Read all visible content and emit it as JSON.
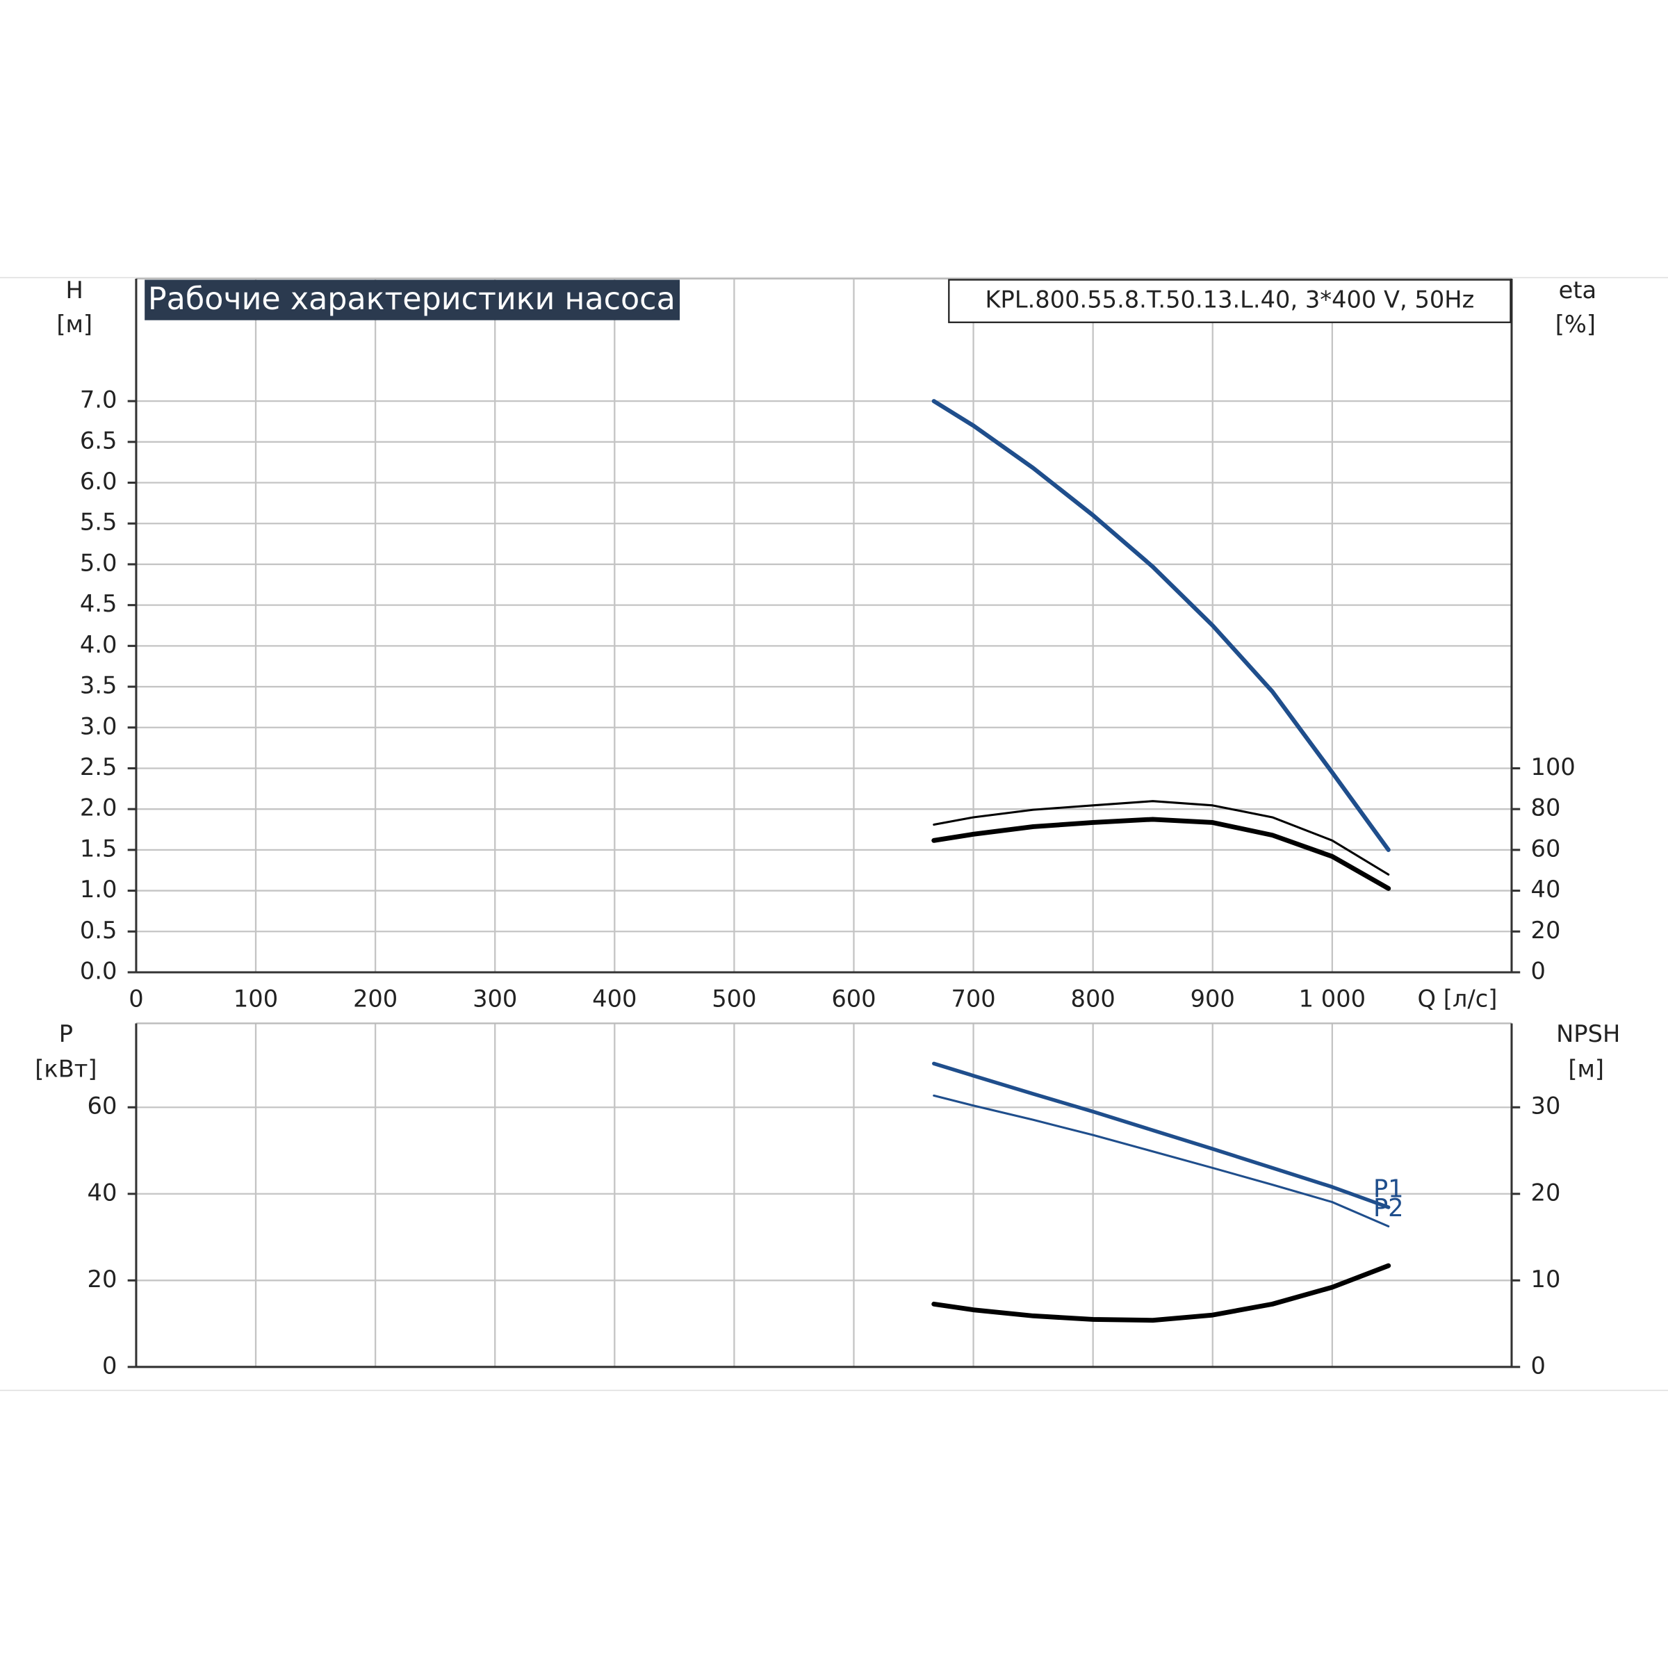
{
  "chart_data": [
    {
      "type": "line",
      "title": "Рабочие характеристики насоса",
      "subtitle": "KPL.800.55.8.T.50.13.L.40, 3*400 V, 50Hz",
      "ylabel": "H",
      "yunit": "[м]",
      "y2label": "eta",
      "y2unit": "[%]",
      "xlabel": "Q [л/с]",
      "xlim": [
        0,
        1150
      ],
      "xticks": [
        0,
        100,
        200,
        300,
        400,
        500,
        600,
        700,
        800,
        900,
        {
          "value": 1000,
          "label": "1 000"
        }
      ],
      "ylim": [
        0,
        8.5
      ],
      "yticks": [
        {
          "value": 0,
          "label": "0.0"
        },
        0.5,
        {
          "value": 1,
          "label": "1.0"
        },
        1.5,
        {
          "value": 2,
          "label": "2.0"
        },
        2.5,
        {
          "value": 3,
          "label": "3.0"
        },
        3.5,
        {
          "value": 4,
          "label": "4.0"
        },
        4.5,
        {
          "value": 5,
          "label": "5.0"
        },
        5.5,
        {
          "value": 6,
          "label": "6.0"
        },
        6.5,
        {
          "value": 7,
          "label": "7.0"
        }
      ],
      "y2lim": [
        0,
        340
      ],
      "y2ticks": [
        0,
        20,
        40,
        60,
        80,
        100
      ],
      "grid": true,
      "series": [
        {
          "color": "#1f4e8c",
          "linewidth": 4,
          "x": [
            667,
            700,
            750,
            800,
            850,
            900,
            950,
            1000,
            1047
          ],
          "values": [
            7.0,
            6.7,
            6.18,
            5.6,
            4.97,
            4.25,
            3.44,
            2.45,
            1.5
          ]
        },
        {
          "color": "#000000",
          "linewidth": 2,
          "axis": "y2",
          "x": [
            667,
            700,
            750,
            800,
            850,
            900,
            950,
            1000,
            1047
          ],
          "values": [
            72.4,
            76,
            79.7,
            81.8,
            83.9,
            81.8,
            76,
            64.6,
            47.9
          ]
        },
        {
          "color": "#000000",
          "linewidth": 4.5,
          "axis": "y2",
          "x": [
            667,
            700,
            750,
            800,
            850,
            900,
            950,
            1000,
            1047
          ],
          "values": [
            64.6,
            67.7,
            71.4,
            73.4,
            75,
            73.4,
            67.2,
            56.8,
            41.1
          ]
        }
      ]
    },
    {
      "type": "line",
      "ylabel": "P",
      "yunit": "[кВт]",
      "y2label": "NPSH",
      "y2unit": "[м]",
      "ylim": [
        0,
        79.4
      ],
      "yticks": [
        0,
        20,
        40,
        60
      ],
      "y2lim": [
        0,
        39.7
      ],
      "y2ticks": [
        0,
        10,
        20,
        30
      ],
      "grid": true,
      "series": [
        {
          "name": "P1",
          "color": "#1f4e8c",
          "linewidth": 3.5,
          "x": [
            667,
            700,
            750,
            800,
            850,
            900,
            950,
            1000,
            1047
          ],
          "values": [
            70.1,
            67.3,
            63.1,
            59,
            54.7,
            50.4,
            46.0,
            41.6,
            36.9
          ]
        },
        {
          "name": "P2",
          "color": "#1f4e8c",
          "linewidth": 2,
          "x": [
            667,
            700,
            750,
            800,
            850,
            900,
            950,
            1000,
            1047
          ],
          "values": [
            62.7,
            60.4,
            57.1,
            53.6,
            49.8,
            46,
            42.1,
            38.1,
            32.5
          ]
        },
        {
          "color": "#000000",
          "linewidth": 4.5,
          "axis": "y2",
          "x": [
            667,
            700,
            750,
            800,
            850,
            900,
            950,
            1000,
            1047
          ],
          "values": [
            7.26,
            6.6,
            5.9,
            5.5,
            5.4,
            6.0,
            7.26,
            9.2,
            11.7
          ]
        }
      ]
    }
  ]
}
